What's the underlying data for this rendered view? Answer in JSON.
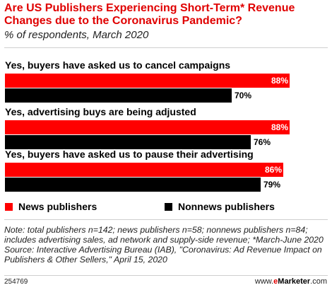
{
  "header": {
    "title": "Are US Publishers Experiencing Short-Term* Revenue Changes due to the Coronavirus Pandemic?",
    "subtitle": "% of respondents, March 2020"
  },
  "colors": {
    "news": "#ff0000",
    "nonnews": "#000000",
    "accent": "#e00000"
  },
  "chart_data": {
    "type": "bar",
    "orientation": "horizontal",
    "categories": [
      "Yes, buyers have asked us to cancel campaigns",
      "Yes, advertising buys are being adjusted",
      "Yes, buyers have asked us to pause their advertising"
    ],
    "series": [
      {
        "name": "News publishers",
        "values": [
          88,
          88,
          86
        ],
        "labels": [
          "88%",
          "88%",
          "86%"
        ]
      },
      {
        "name": "Nonnews publishers",
        "values": [
          70,
          76,
          79
        ],
        "labels": [
          "70%",
          "76%",
          "79%"
        ]
      }
    ],
    "xlim": [
      0,
      100
    ],
    "legend_position": "bottom",
    "grid": false
  },
  "footer": {
    "note": "Note: total publishers n=142; news publishers n=58; nonnews publishers n=84; includes advertising sales, ad network and supply-side revenue; *March-June 2020",
    "source": "Source: Interactive Advertising Bureau (IAB), \"Coronavirus: Ad Revenue Impact on Publishers & Other Sellers,\" April 15, 2020",
    "code": "254769",
    "brand_prefix": "www.",
    "brand_e": "e",
    "brand_name": "Marketer",
    "brand_suffix": ".com"
  }
}
